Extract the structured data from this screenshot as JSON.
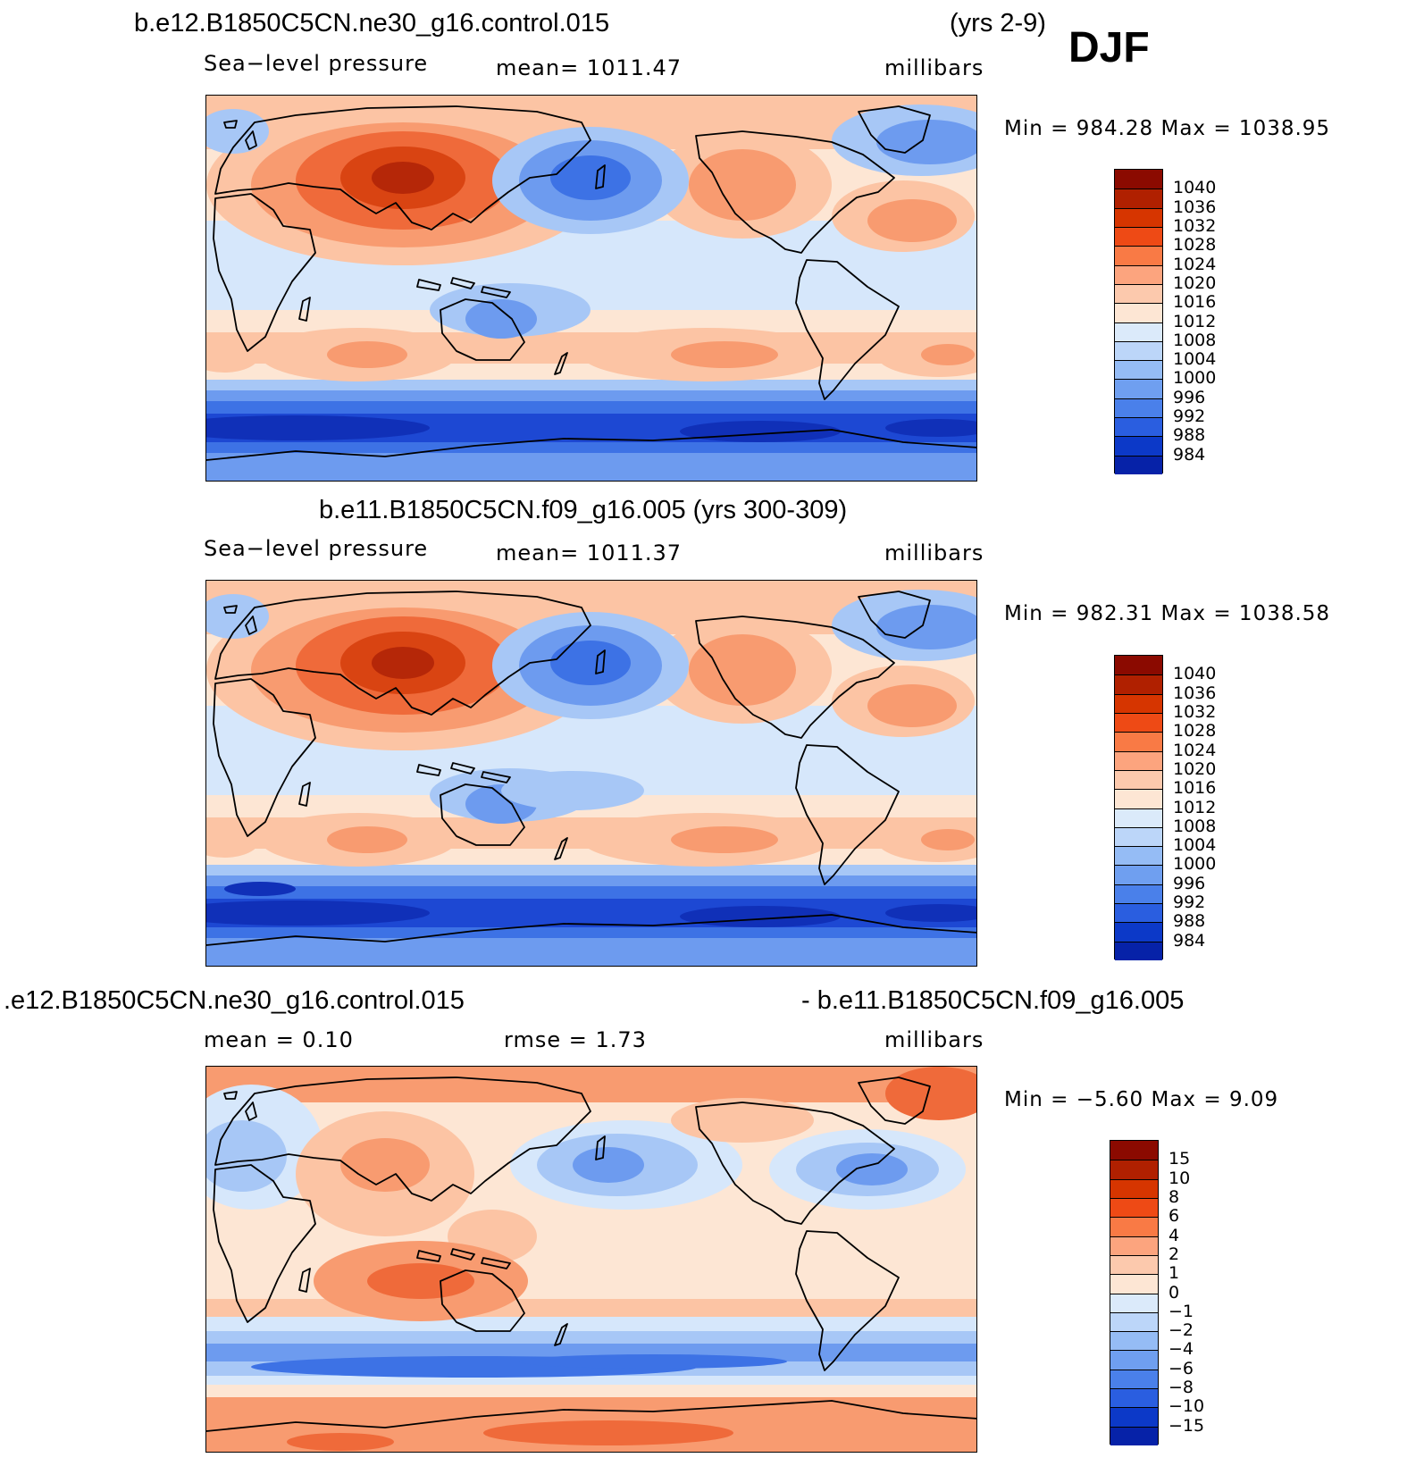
{
  "season": "DJF",
  "panels": [
    {
      "title_left": "b.e12.B1850C5CN.ne30_g16.control.015",
      "title_right": "(yrs 2-9)",
      "label_left": "Sea−level  pressure",
      "label_mid": "mean=  1011.47",
      "units": "millibars",
      "minmax": "Min  =  984.28  Max  =  1038.95",
      "colorbar": {
        "labels": [
          "1040",
          "1036",
          "1032",
          "1028",
          "1024",
          "1020",
          "1016",
          "1012",
          "1008",
          "1004",
          "1000",
          "996",
          "992",
          "988",
          "984"
        ],
        "colors": [
          "#8b0a00",
          "#b02000",
          "#d63500",
          "#ee4a15",
          "#f97a45",
          "#fca47e",
          "#fcc9ad",
          "#fde6d4",
          "#dbeafa",
          "#bcd6f9",
          "#95bcf5",
          "#6f9ff0",
          "#4a80ea",
          "#2a5ee0",
          "#0c39c8",
          "#0622a8"
        ]
      },
      "data_colors": [
        "#1030b8",
        "#1d48d3",
        "#3d72e5",
        "#6d9bef",
        "#a7c7f6",
        "#d6e7fb",
        "#fde6d4",
        "#fcc4a4",
        "#f89b70",
        "#ef6a3a",
        "#d94412",
        "#b52708"
      ]
    },
    {
      "title_center": "b.e11.B1850C5CN.f09_g16.005 (yrs 300-309)",
      "label_left": "Sea−level  pressure",
      "label_mid": "mean=  1011.37",
      "units": "millibars",
      "minmax": "Min  =  982.31  Max  =  1038.58",
      "colorbar": {
        "labels": [
          "1040",
          "1036",
          "1032",
          "1028",
          "1024",
          "1020",
          "1016",
          "1012",
          "1008",
          "1004",
          "1000",
          "996",
          "992",
          "988",
          "984"
        ],
        "colors": [
          "#8b0a00",
          "#b02000",
          "#d63500",
          "#ee4a15",
          "#f97a45",
          "#fca47e",
          "#fcc9ad",
          "#fde6d4",
          "#dbeafa",
          "#bcd6f9",
          "#95bcf5",
          "#6f9ff0",
          "#4a80ea",
          "#2a5ee0",
          "#0c39c8",
          "#0622a8"
        ]
      },
      "data_colors": [
        "#1030b8",
        "#1d48d3",
        "#3d72e5",
        "#6d9bef",
        "#a7c7f6",
        "#d6e7fb",
        "#fde6d4",
        "#fcc4a4",
        "#f89b70",
        "#ef6a3a",
        "#d94412",
        "#b52708"
      ]
    },
    {
      "title_left": ".e12.B1850C5CN.ne30_g16.control.015",
      "title_right": "- b.e11.B1850C5CN.f09_g16.005",
      "label_left": "mean  =      0.10",
      "label_mid": "rmse  =      1.73",
      "units": "millibars",
      "minmax": "Min  =    −5.60  Max  =      9.09",
      "colorbar": {
        "labels": [
          "15",
          "10",
          "8",
          "6",
          "4",
          "2",
          "1",
          "0",
          "−1",
          "−2",
          "−4",
          "−6",
          "−8",
          "−10",
          "−15"
        ],
        "colors": [
          "#8b0a00",
          "#b02000",
          "#d63500",
          "#ee4a15",
          "#f97a45",
          "#fca47e",
          "#fcc9ad",
          "#fde6d4",
          "#dbeafa",
          "#bcd6f9",
          "#95bcf5",
          "#6f9ff0",
          "#4a80ea",
          "#2a5ee0",
          "#0c39c8",
          "#0622a8"
        ]
      },
      "data_colors": [
        "#1d48d3",
        "#3d72e5",
        "#6d9bef",
        "#a7c7f6",
        "#d6e7fb",
        "#fde6d4",
        "#fcc4a4",
        "#f89b70",
        "#ef6a3a"
      ]
    }
  ]
}
